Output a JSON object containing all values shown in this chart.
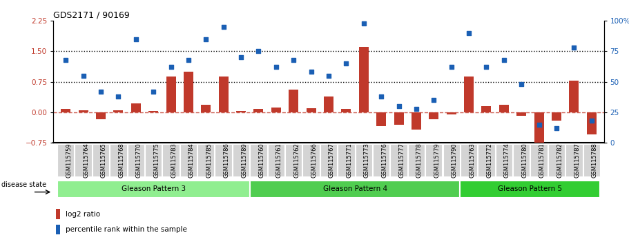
{
  "title": "GDS2171 / 90169",
  "samples": [
    "GSM115759",
    "GSM115764",
    "GSM115765",
    "GSM115768",
    "GSM115770",
    "GSM115775",
    "GSM115783",
    "GSM115784",
    "GSM115785",
    "GSM115786",
    "GSM115789",
    "GSM115760",
    "GSM115761",
    "GSM115762",
    "GSM115766",
    "GSM115767",
    "GSM115771",
    "GSM115773",
    "GSM115776",
    "GSM115777",
    "GSM115778",
    "GSM115779",
    "GSM115790",
    "GSM115763",
    "GSM115772",
    "GSM115774",
    "GSM115780",
    "GSM115781",
    "GSM115782",
    "GSM115787",
    "GSM115788"
  ],
  "log2_ratio": [
    0.08,
    0.05,
    -0.18,
    0.05,
    0.22,
    0.03,
    0.88,
    1.0,
    0.18,
    0.88,
    0.03,
    0.08,
    0.12,
    0.55,
    0.1,
    0.38,
    0.08,
    1.6,
    -0.35,
    -0.3,
    -0.42,
    -0.18,
    -0.05,
    0.88,
    0.15,
    0.18,
    -0.08,
    -0.78,
    -0.2,
    0.78,
    -0.55
  ],
  "percentile": [
    68,
    55,
    42,
    38,
    85,
    42,
    62,
    68,
    85,
    95,
    70,
    75,
    62,
    68,
    58,
    55,
    65,
    98,
    38,
    30,
    28,
    35,
    62,
    90,
    62,
    68,
    48,
    15,
    12,
    78,
    18
  ],
  "groups": [
    {
      "name": "Gleason Pattern 3",
      "start": 0,
      "end": 10,
      "color": "#90ee90"
    },
    {
      "name": "Gleason Pattern 4",
      "start": 11,
      "end": 22,
      "color": "#50cd50"
    },
    {
      "name": "Gleason Pattern 5",
      "start": 23,
      "end": 30,
      "color": "#32cd32"
    }
  ],
  "ylim_left": [
    -0.75,
    2.25
  ],
  "ylim_right": [
    0,
    100
  ],
  "yticks_left": [
    -0.75,
    0.0,
    0.75,
    1.5,
    2.25
  ],
  "yticks_right": [
    0,
    25,
    50,
    75,
    100
  ],
  "hline_dotted": [
    1.5,
    0.75
  ],
  "hline_dashed": 0.0,
  "bar_color": "#c0392b",
  "dot_color": "#1a5fb4",
  "tick_label_fontsize": 6.0,
  "axis_color_left": "#c0392b",
  "axis_color_right": "#1a5fb4",
  "n_group3": 11,
  "n_group4": 12,
  "n_group5": 8
}
